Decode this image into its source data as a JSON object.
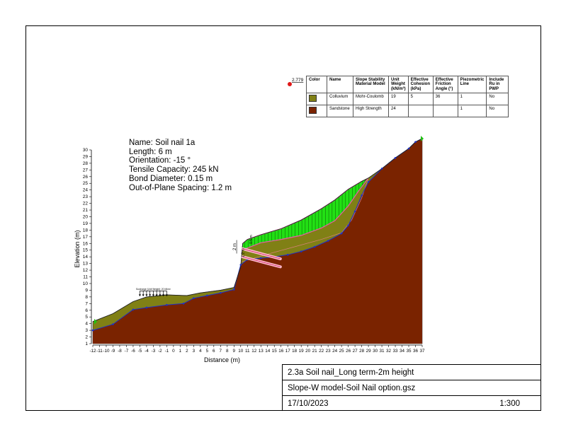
{
  "fos": {
    "value": "2.779"
  },
  "legend": {
    "headers": [
      "Color",
      "Name",
      "Slope Stability Material Model",
      "Unit Weight (kN/m³)",
      "Effective Cohesion (kPa)",
      "Effective Friction Angle (°)",
      "Piezometric Line",
      "Include Ru in PWP"
    ],
    "rows": [
      {
        "color": "#808015",
        "name": "Colluvium",
        "model": "Mohr-Coulomb",
        "unit_weight": "19",
        "cohesion": "5",
        "friction": "36",
        "piezo": "1",
        "ru": "No"
      },
      {
        "color": "#7a2300",
        "name": "Sandstone",
        "model": "High Strength",
        "unit_weight": "24",
        "cohesion": "",
        "friction": "",
        "piezo": "1",
        "ru": "No"
      }
    ]
  },
  "soil_nail": {
    "name": "Name: Soil nail 1a",
    "length": "Length: 6 m",
    "orientation": "Orientation: -15 °",
    "tensile": "Tensile Capacity: 245 kN",
    "bond": "Bond Diameter: 0.15 m",
    "spacing": "Out-of-Plane Spacing: 1.2 m"
  },
  "dims": {
    "d1": "2 m",
    "d2": "1.2 m",
    "d3": "0.5 m"
  },
  "surcharge_label": "Surcharge (Unit Weight): 20 kN/m³",
  "axes": {
    "xlabel": "Distance (m)",
    "ylabel": "Elevation (m)",
    "xmin": -12,
    "xmax": 37,
    "ymin": 1,
    "ymax": 30
  },
  "title_block": {
    "line1": "2.3a Soil nail_Long term-2m height",
    "line2": "Slope-W model-Soil Nail option.gsz",
    "date": "17/10/2023",
    "scale": "1:300"
  },
  "geometry": {
    "ground": [
      [
        -12,
        4.3
      ],
      [
        -9,
        5.5
      ],
      [
        -6,
        7.3
      ],
      [
        -4,
        8
      ],
      [
        -1,
        8.3
      ],
      [
        2,
        8.2
      ],
      [
        4,
        8.6
      ],
      [
        7,
        9
      ],
      [
        9,
        9.4
      ],
      [
        10,
        12.5
      ],
      [
        10.3,
        16
      ],
      [
        11,
        16.6
      ],
      [
        13,
        17.3
      ],
      [
        16,
        18.2
      ],
      [
        19,
        19.5
      ],
      [
        22,
        21.2
      ],
      [
        24,
        22.5
      ],
      [
        26,
        24.1
      ],
      [
        28,
        25.3
      ],
      [
        29,
        25.8
      ],
      [
        31,
        27.2
      ],
      [
        33,
        28.8
      ],
      [
        35,
        30.2
      ],
      [
        36,
        31.2
      ],
      [
        37,
        31.7
      ]
    ],
    "bedrock": [
      [
        -12,
        3
      ],
      [
        -9,
        3.9
      ],
      [
        -6,
        6.1
      ],
      [
        -4,
        6.4
      ],
      [
        -1,
        6.8
      ],
      [
        1.5,
        7
      ],
      [
        3,
        7.8
      ],
      [
        5,
        8.2
      ],
      [
        7,
        8.6
      ],
      [
        9,
        9.1
      ],
      [
        10,
        12.8
      ],
      [
        11,
        13.6
      ],
      [
        13,
        13.8
      ],
      [
        15,
        14
      ],
      [
        17,
        14.3
      ],
      [
        19,
        14.8
      ],
      [
        21,
        15.5
      ],
      [
        23,
        16.4
      ],
      [
        25,
        17.5
      ],
      [
        26,
        18.7
      ],
      [
        27,
        20.8
      ],
      [
        28,
        23.2
      ],
      [
        29,
        25.2
      ],
      [
        31,
        27.2
      ],
      [
        33,
        28.8
      ],
      [
        35,
        30.2
      ],
      [
        36,
        31.2
      ],
      [
        37,
        31.7
      ]
    ],
    "slip": [
      [
        10.2,
        15
      ],
      [
        13,
        16.1
      ],
      [
        16,
        16.6
      ],
      [
        19,
        17.2
      ],
      [
        22,
        18.3
      ],
      [
        24,
        19.4
      ],
      [
        26,
        21.6
      ],
      [
        27.5,
        23.8
      ],
      [
        29,
        25.8
      ]
    ],
    "slip_outer": [
      [
        10,
        13.2
      ],
      [
        14,
        14.4
      ],
      [
        18,
        15.5
      ],
      [
        22,
        16.6
      ],
      [
        25,
        17.6
      ],
      [
        26.5,
        19.5
      ],
      [
        28,
        22.8
      ],
      [
        29,
        25.8
      ]
    ],
    "wedge_bottom": [
      [
        10.2,
        15
      ],
      [
        13,
        16.1
      ],
      [
        16,
        16.6
      ],
      [
        19,
        17.2
      ],
      [
        22,
        18.3
      ],
      [
        24,
        19.4
      ],
      [
        26,
        21.6
      ],
      [
        27.5,
        23.8
      ],
      [
        28.6,
        25.5
      ]
    ],
    "nails": [
      [
        [
          10.3,
          15.2
        ],
        [
          15.9,
          13.7
        ]
      ],
      [
        [
          10.3,
          14.0
        ],
        [
          15.9,
          12.5
        ]
      ]
    ],
    "surcharge_x": [
      -5,
      -1
    ]
  }
}
